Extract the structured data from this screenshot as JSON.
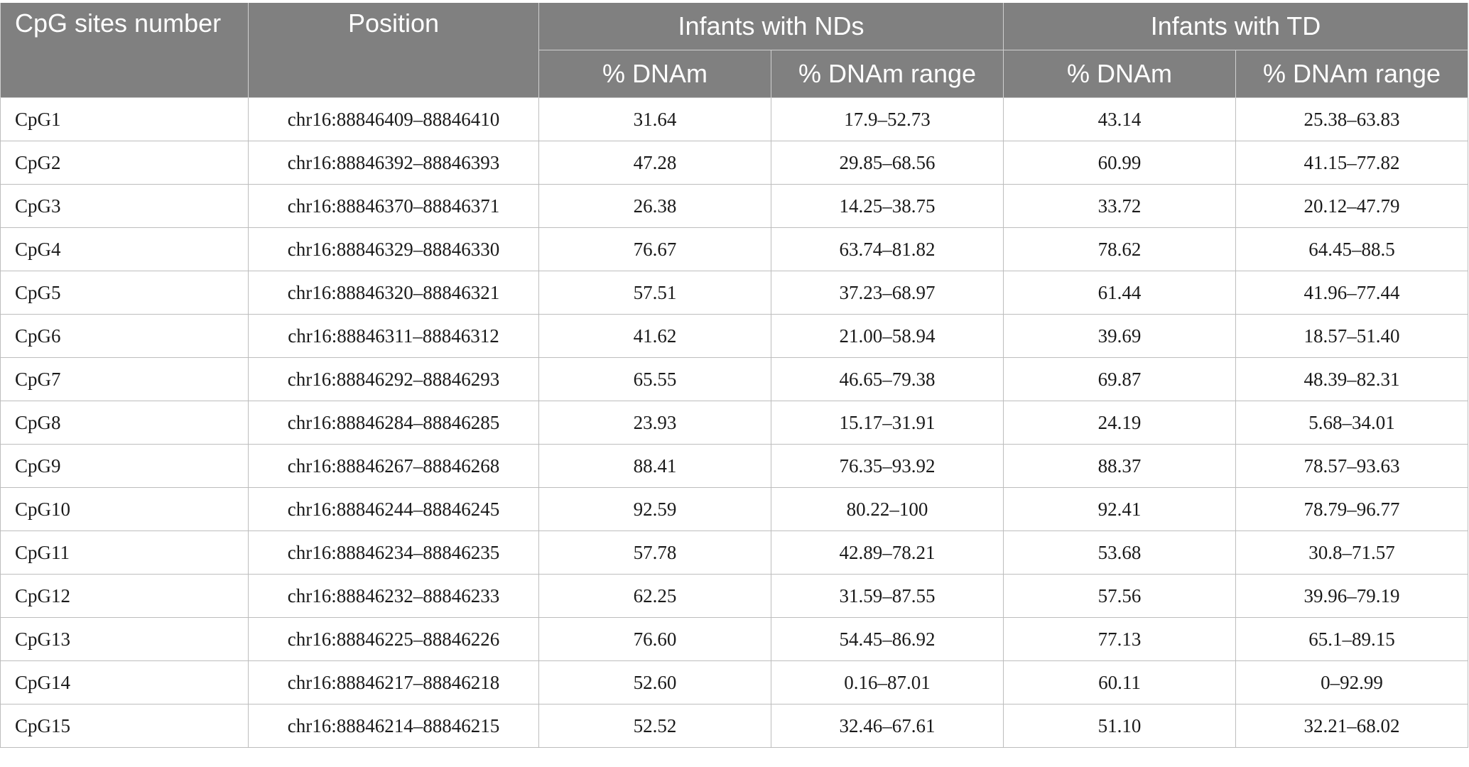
{
  "header": {
    "site_label": "CpG sites number",
    "position_label": "Position",
    "group_nd_label": "Infants with NDs",
    "group_td_label": "Infants with TD",
    "sub_dnam": "% DNAm",
    "sub_range": "% DNAm range"
  },
  "rows": [
    {
      "site": "CpG1",
      "position": "chr16:88846409–88846410",
      "nd_dnam": "31.64",
      "nd_range": "17.9–52.73",
      "td_dnam": "43.14",
      "td_range": "25.38–63.83"
    },
    {
      "site": "CpG2",
      "position": "chr16:88846392–88846393",
      "nd_dnam": "47.28",
      "nd_range": "29.85–68.56",
      "td_dnam": "60.99",
      "td_range": "41.15–77.82"
    },
    {
      "site": "CpG3",
      "position": "chr16:88846370–88846371",
      "nd_dnam": "26.38",
      "nd_range": "14.25–38.75",
      "td_dnam": "33.72",
      "td_range": "20.12–47.79"
    },
    {
      "site": "CpG4",
      "position": "chr16:88846329–88846330",
      "nd_dnam": "76.67",
      "nd_range": "63.74–81.82",
      "td_dnam": "78.62",
      "td_range": "64.45–88.5"
    },
    {
      "site": "CpG5",
      "position": "chr16:88846320–88846321",
      "nd_dnam": "57.51",
      "nd_range": "37.23–68.97",
      "td_dnam": "61.44",
      "td_range": "41.96–77.44"
    },
    {
      "site": "CpG6",
      "position": "chr16:88846311–88846312",
      "nd_dnam": "41.62",
      "nd_range": "21.00–58.94",
      "td_dnam": "39.69",
      "td_range": "18.57–51.40"
    },
    {
      "site": "CpG7",
      "position": "chr16:88846292–88846293",
      "nd_dnam": "65.55",
      "nd_range": "46.65–79.38",
      "td_dnam": "69.87",
      "td_range": "48.39–82.31"
    },
    {
      "site": "CpG8",
      "position": "chr16:88846284–88846285",
      "nd_dnam": "23.93",
      "nd_range": "15.17–31.91",
      "td_dnam": "24.19",
      "td_range": "5.68–34.01"
    },
    {
      "site": "CpG9",
      "position": "chr16:88846267–88846268",
      "nd_dnam": "88.41",
      "nd_range": "76.35–93.92",
      "td_dnam": "88.37",
      "td_range": "78.57–93.63"
    },
    {
      "site": "CpG10",
      "position": "chr16:88846244–88846245",
      "nd_dnam": "92.59",
      "nd_range": "80.22–100",
      "td_dnam": "92.41",
      "td_range": "78.79–96.77"
    },
    {
      "site": "CpG11",
      "position": "chr16:88846234–88846235",
      "nd_dnam": "57.78",
      "nd_range": "42.89–78.21",
      "td_dnam": "53.68",
      "td_range": "30.8–71.57"
    },
    {
      "site": "CpG12",
      "position": "chr16:88846232–88846233",
      "nd_dnam": "62.25",
      "nd_range": "31.59–87.55",
      "td_dnam": "57.56",
      "td_range": "39.96–79.19"
    },
    {
      "site": "CpG13",
      "position": "chr16:88846225–88846226",
      "nd_dnam": "76.60",
      "nd_range": "54.45–86.92",
      "td_dnam": "77.13",
      "td_range": "65.1–89.15"
    },
    {
      "site": "CpG14",
      "position": "chr16:88846217–88846218",
      "nd_dnam": "52.60",
      "nd_range": "0.16–87.01",
      "td_dnam": "60.11",
      "td_range": "0–92.99"
    },
    {
      "site": "CpG15",
      "position": "chr16:88846214–88846215",
      "nd_dnam": "52.52",
      "nd_range": "32.46–67.61",
      "td_dnam": "51.10",
      "td_range": "32.21–68.02"
    }
  ]
}
